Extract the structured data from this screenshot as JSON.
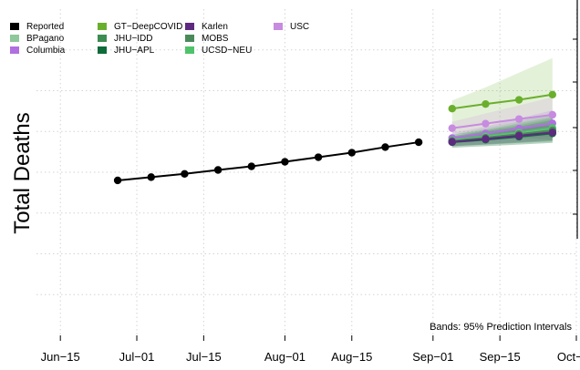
{
  "chart_data": {
    "type": "line",
    "title": "",
    "xlabel": "",
    "ylabel": "Total Deaths",
    "note": "Bands: 95% Prediction Intervals",
    "x_ticks": [
      "Jun−15",
      "Jul−01",
      "Jul−15",
      "Aug−01",
      "Aug−15",
      "Sep−01",
      "Sep−15",
      "Oct−01"
    ],
    "x_tick_dates": [
      "2020-06-15",
      "2020-07-01",
      "2020-07-15",
      "2020-08-01",
      "2020-08-15",
      "2020-09-01",
      "2020-09-15",
      "2020-10-01"
    ],
    "xlim": [
      "2020-06-10",
      "2020-10-01"
    ],
    "ylim": [
      0,
      100
    ],
    "grid": true,
    "legend_position": "top-left",
    "legend": [
      {
        "name": "Reported",
        "color": "#000000"
      },
      {
        "name": "BPagano",
        "color": "#8fc89a"
      },
      {
        "name": "Columbia",
        "color": "#b070e0"
      },
      {
        "name": "GT−DeepCOVID",
        "color": "#6aaf2c"
      },
      {
        "name": "JHU−IDD",
        "color": "#3d8c52"
      },
      {
        "name": "JHU−APL",
        "color": "#0e6b3a"
      },
      {
        "name": "Karlen",
        "color": "#5e2a80"
      },
      {
        "name": "MOBS",
        "color": "#4a8a5a"
      },
      {
        "name": "UCSD−NEU",
        "color": "#4fc36a"
      },
      {
        "name": "USC",
        "color": "#c78be0"
      }
    ],
    "series": [
      {
        "name": "Reported",
        "color": "#000000",
        "x": [
          "2020-06-27",
          "2020-07-04",
          "2020-07-11",
          "2020-07-18",
          "2020-07-25",
          "2020-08-01",
          "2020-08-08",
          "2020-08-15",
          "2020-08-22",
          "2020-08-29"
        ],
        "y": [
          47.5,
          48.5,
          49.5,
          50.7,
          51.8,
          53.2,
          54.6,
          56.0,
          57.7,
          59.2
        ]
      },
      {
        "name": "GT−DeepCOVID",
        "color": "#6aaf2c",
        "x": [
          "2020-09-05",
          "2020-09-12",
          "2020-09-19",
          "2020-09-26"
        ],
        "y": [
          69.5,
          70.9,
          72.2,
          73.8
        ],
        "lower": [
          62.0,
          61.0,
          60.5,
          60.0
        ],
        "upper": [
          72.0,
          76.0,
          80.5,
          85.0
        ]
      },
      {
        "name": "USC",
        "color": "#c78be0",
        "x": [
          "2020-09-05",
          "2020-09-12",
          "2020-09-19",
          "2020-09-26"
        ],
        "y": [
          63.5,
          64.9,
          66.3,
          67.6
        ],
        "lower": [
          61.5,
          62.0,
          62.5,
          63.0
        ],
        "upper": [
          65.5,
          68.0,
          70.5,
          73.0
        ]
      },
      {
        "name": "Columbia",
        "color": "#b070e0",
        "x": [
          "2020-09-05",
          "2020-09-12",
          "2020-09-19",
          "2020-09-26"
        ],
        "y": [
          60.5,
          61.9,
          63.4,
          65.0
        ],
        "lower": [
          59.0,
          59.8,
          60.5,
          61.0
        ],
        "upper": [
          62.0,
          64.0,
          66.5,
          69.0
        ]
      },
      {
        "name": "UCSD−NEU",
        "color": "#4fc36a",
        "x": [
          "2020-09-05",
          "2020-09-12",
          "2020-09-19",
          "2020-09-26"
        ],
        "y": [
          59.8,
          61.0,
          62.2,
          63.6
        ],
        "lower": [
          58.0,
          58.5,
          59.0,
          59.5
        ],
        "upper": [
          61.5,
          63.5,
          65.5,
          68.0
        ]
      },
      {
        "name": "BPagano",
        "color": "#8fc89a",
        "x": [
          "2020-09-05",
          "2020-09-12",
          "2020-09-19",
          "2020-09-26"
        ],
        "y": [
          59.7,
          60.7,
          61.8,
          63.0
        ],
        "lower": [
          58.0,
          58.5,
          59.0,
          59.5
        ],
        "upper": [
          61.5,
          63.0,
          64.5,
          66.5
        ]
      },
      {
        "name": "MOBS",
        "color": "#4a8a5a",
        "x": [
          "2020-09-05",
          "2020-09-12",
          "2020-09-19",
          "2020-09-26"
        ],
        "y": [
          59.6,
          60.6,
          61.7,
          62.9
        ],
        "lower": [
          58.0,
          58.5,
          59.0,
          59.5
        ],
        "upper": [
          61.0,
          62.8,
          64.5,
          66.5
        ]
      },
      {
        "name": "JHU−IDD",
        "color": "#3d8c52",
        "x": [
          "2020-09-05",
          "2020-09-12",
          "2020-09-19",
          "2020-09-26"
        ],
        "y": [
          59.4,
          60.3,
          61.3,
          62.4
        ],
        "lower": [
          57.5,
          58.0,
          58.5,
          59.0
        ],
        "upper": [
          61.5,
          63.0,
          65.0,
          67.0
        ]
      },
      {
        "name": "JHU−APL",
        "color": "#0e6b3a",
        "x": [
          "2020-09-05",
          "2020-09-12",
          "2020-09-19",
          "2020-09-26"
        ],
        "y": [
          59.2,
          60.0,
          60.9,
          61.9
        ],
        "lower": [
          57.5,
          58.0,
          58.5,
          59.0
        ],
        "upper": [
          61.0,
          62.5,
          64.0,
          66.0
        ]
      },
      {
        "name": "Karlen",
        "color": "#5e2a80",
        "x": [
          "2020-09-05",
          "2020-09-12",
          "2020-09-19",
          "2020-09-26"
        ],
        "y": [
          59.3,
          60.2,
          61.2,
          62.2
        ],
        "lower": [
          58.0,
          58.6,
          59.2,
          59.8
        ],
        "upper": [
          60.6,
          61.8,
          63.2,
          64.6
        ]
      }
    ]
  }
}
